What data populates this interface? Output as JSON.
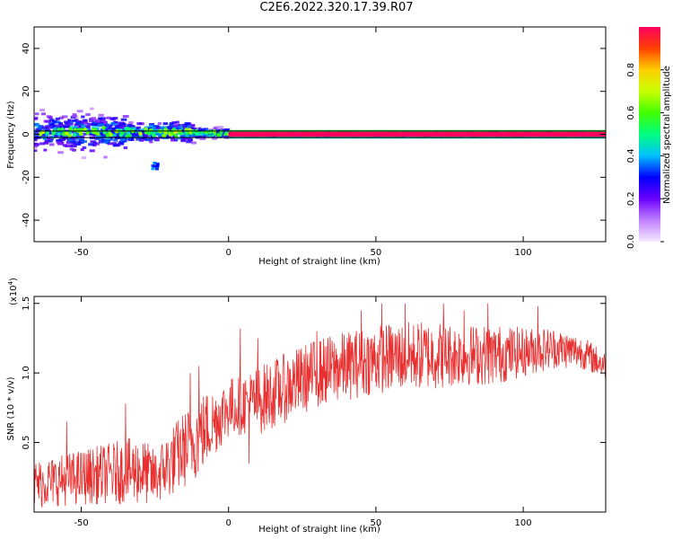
{
  "title": "C2E6.2022.320.17.39.R07",
  "chart_data": [
    {
      "type": "heatmap",
      "ylabel": "Frequency (Hz)",
      "xlabel": "Height of straight line (km)",
      "xlim": [
        -66,
        128
      ],
      "ylim": [
        -50,
        50
      ],
      "xticks": [
        -50,
        0,
        50,
        100
      ],
      "yticks": [
        -40,
        -20,
        0,
        20,
        40
      ],
      "ytick_labels": [
        "-40",
        "-20",
        "0",
        "20",
        "40"
      ],
      "xtick_labels": [
        "-50",
        "0",
        "50",
        "100"
      ],
      "horizontal_lines_hz": [
        1.5,
        -1.5
      ],
      "colorbar": {
        "label": "Normalized spectral amplitude",
        "range": [
          0,
          1
        ],
        "ticks": [
          0.0,
          0.2,
          0.4,
          0.6,
          0.8
        ],
        "tick_labels": [
          "0.0",
          "0.2",
          "0.4",
          "0.6",
          "0.8"
        ],
        "colors": [
          "#f4e8ff",
          "#c080ff",
          "#6a00ff",
          "#0000ff",
          "#00c0ff",
          "#00ff80",
          "#40ff00",
          "#c8ff00",
          "#ffd000",
          "#ff4000",
          "#ff0060"
        ]
      },
      "ridge_segments": [
        {
          "x_range": [
            -66,
            -35
          ],
          "center_hz": 1,
          "spread_hz": 8,
          "peak": 0.45
        },
        {
          "x_range": [
            -35,
            -12
          ],
          "center_hz": 1,
          "spread_hz": 4,
          "peak": 0.55
        },
        {
          "x_range": [
            -12,
            0
          ],
          "center_hz": 0.5,
          "spread_hz": 2,
          "peak": 0.6
        },
        {
          "x_range": [
            0,
            128
          ],
          "center_hz": 0,
          "spread_hz": 0.8,
          "peak": 1.0
        }
      ],
      "feature_spot": {
        "x": -25,
        "y_hz": -14,
        "peak": 0.3
      }
    },
    {
      "type": "line",
      "ylabel": "SNR (10 * v/v)",
      "xlabel": "Height of straight line (km)",
      "multiplier_label": "(x10",
      "multiplier_exponent": "4",
      "xlim": [
        -66,
        128
      ],
      "ylim": [
        0,
        1.55
      ],
      "xticks": [
        -50,
        0,
        50,
        100
      ],
      "xtick_labels": [
        "-50",
        "0",
        "50",
        "100"
      ],
      "yticks": [
        0.5,
        1.0,
        1.5
      ],
      "ytick_labels": [
        "0.5",
        "1.0",
        "1.5"
      ],
      "color": "#e83030",
      "x": [
        -66,
        -60,
        -50,
        -40,
        -30,
        -25,
        -20,
        -15,
        -10,
        -5,
        0,
        5,
        10,
        20,
        30,
        40,
        50,
        60,
        70,
        80,
        90,
        100,
        110,
        120,
        128
      ],
      "mean": [
        0.2,
        0.22,
        0.25,
        0.28,
        0.3,
        0.25,
        0.35,
        0.45,
        0.55,
        0.65,
        0.75,
        0.78,
        0.8,
        0.9,
        1.0,
        1.05,
        1.1,
        1.12,
        1.13,
        1.13,
        1.13,
        1.15,
        1.18,
        1.15,
        1.05
      ],
      "amplitude": [
        0.18,
        0.18,
        0.2,
        0.22,
        0.25,
        0.2,
        0.25,
        0.28,
        0.3,
        0.25,
        0.22,
        0.22,
        0.25,
        0.25,
        0.25,
        0.25,
        0.25,
        0.25,
        0.25,
        0.22,
        0.22,
        0.18,
        0.15,
        0.12,
        0.1
      ],
      "spikes": [
        [
          -55,
          0.65
        ],
        [
          -35,
          0.78
        ],
        [
          -13,
          1.0
        ],
        [
          -10,
          1.05
        ],
        [
          4,
          1.32
        ],
        [
          7,
          0.35
        ],
        [
          10,
          1.25
        ],
        [
          30,
          1.3
        ],
        [
          45,
          1.45
        ],
        [
          52,
          1.5
        ],
        [
          60,
          1.5
        ],
        [
          73,
          1.5
        ],
        [
          80,
          1.45
        ],
        [
          88,
          1.5
        ],
        [
          105,
          1.48
        ]
      ]
    }
  ]
}
